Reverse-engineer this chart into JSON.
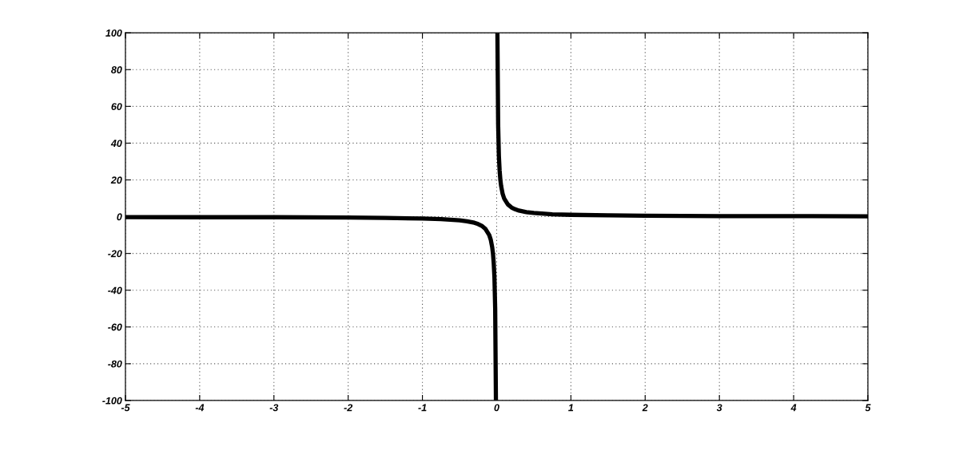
{
  "chart_data": {
    "type": "line",
    "x": [
      -5,
      -4,
      -3,
      -2,
      -1.5,
      -1,
      -0.75,
      -0.5,
      -0.4,
      -0.3,
      -0.25,
      -0.2,
      -0.15,
      -0.1,
      -0.08,
      -0.06,
      -0.05,
      -0.04,
      -0.03,
      -0.02,
      -0.01,
      0,
      0.01,
      0.02,
      0.03,
      0.04,
      0.05,
      0.06,
      0.08,
      0.1,
      0.15,
      0.2,
      0.25,
      0.3,
      0.4,
      0.5,
      0.75,
      1,
      1.5,
      2,
      3,
      4,
      5
    ],
    "values": [
      -0.2,
      -0.3,
      -0.3,
      -0.5,
      -0.7,
      -1,
      -1.3,
      -2,
      -2.5,
      -3.3,
      -4,
      -5,
      -6.7,
      -10,
      -12.5,
      -16.7,
      -20,
      -25,
      -33,
      -50,
      -100,
      null,
      100,
      50,
      33,
      25,
      20,
      16.7,
      12.5,
      10,
      6.7,
      5,
      4,
      3.3,
      2.5,
      2,
      1.3,
      1,
      0.7,
      0.5,
      0.3,
      0.3,
      0.2
    ],
    "color": "#000000",
    "marker": "none",
    "line_style": "solid",
    "xlim": [
      -5,
      5
    ],
    "ylim": [
      -100,
      100
    ],
    "xticks": [
      -5,
      -4,
      -3,
      -2,
      -1,
      0,
      1,
      2,
      3,
      4,
      5
    ],
    "yticks": [
      -100,
      -80,
      -60,
      -40,
      -20,
      0,
      20,
      40,
      60,
      80,
      100
    ],
    "grid": true
  }
}
